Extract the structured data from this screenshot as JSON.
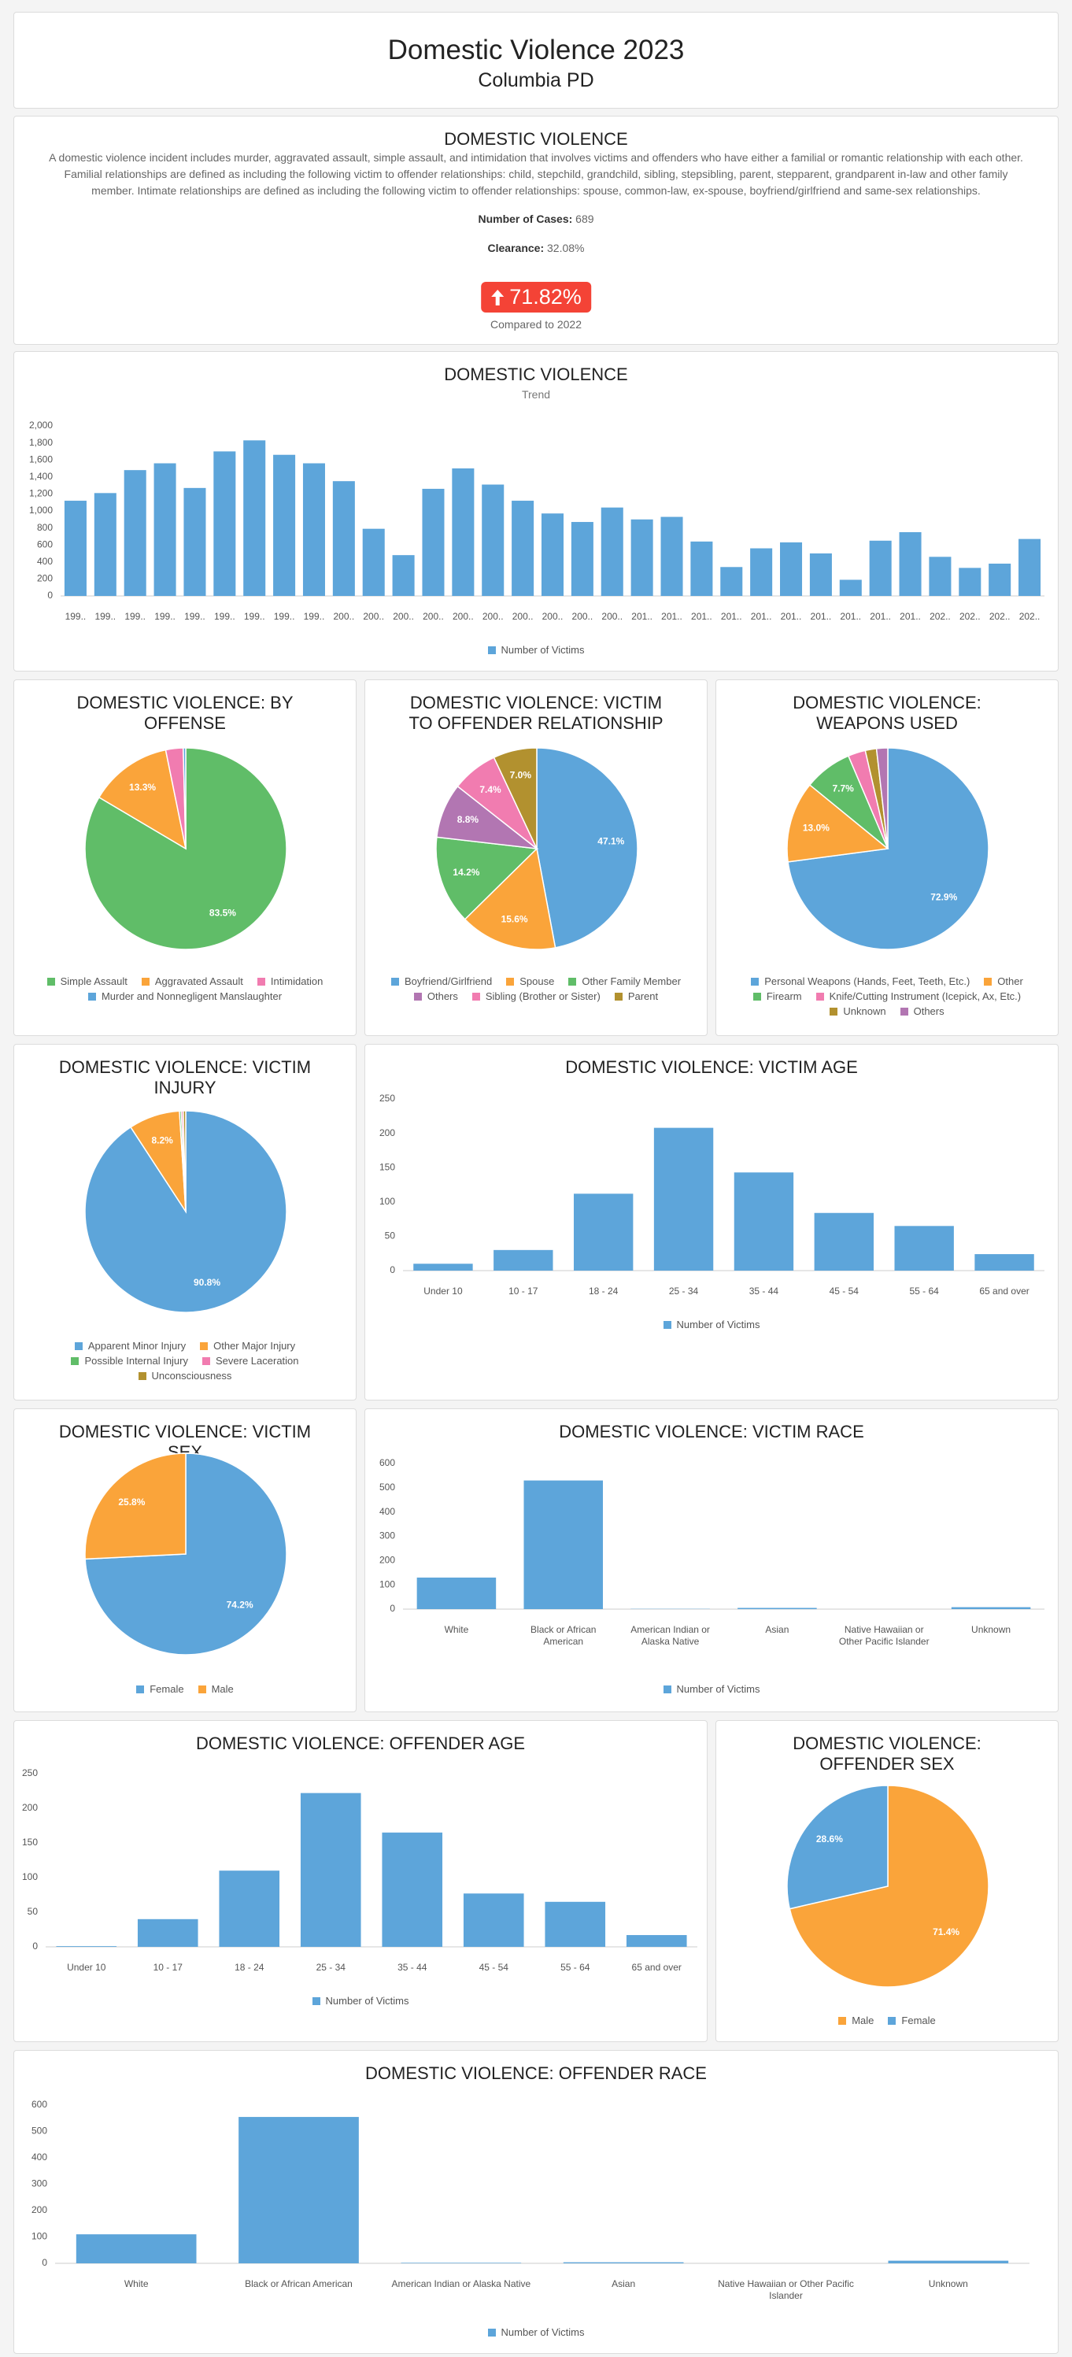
{
  "header": {
    "title": "Domestic Violence 2023",
    "subtitle": "Columbia PD"
  },
  "summary": {
    "title": "DOMESTIC VIOLENCE",
    "description": "A domestic violence incident includes murder, aggravated assault, simple assault, and intimidation that involves victims and offenders who have either a familial or romantic relationship with each other. Familial relationships are defined as including the following victim to offender relationships: child, stepchild, grandchild, sibling, stepsibling, parent, stepparent, grandparent in-law and other family member. Intimate relationships are defined as including the following victim to offender relationships: spouse, common-law, ex-spouse, boyfriend/girlfriend and same-sex relationships.",
    "cases_label": "Number of Cases:",
    "cases": "689",
    "clearance_label": "Clearance:",
    "clearance": "32.08%",
    "change": "71.82%",
    "change_note": "Compared to 2022"
  },
  "chart_data": [
    {
      "type": "bar",
      "title": "DOMESTIC VIOLENCE",
      "subtitle": "Trend",
      "categories": [
        "199..",
        "199..",
        "199..",
        "199..",
        "199..",
        "199..",
        "199..",
        "199..",
        "199..",
        "200..",
        "200..",
        "200..",
        "200..",
        "200..",
        "200..",
        "200..",
        "200..",
        "200..",
        "200..",
        "201..",
        "201..",
        "201..",
        "201..",
        "201..",
        "201..",
        "201..",
        "201..",
        "201..",
        "201..",
        "202..",
        "202..",
        "202..",
        "202.."
      ],
      "series": [
        {
          "name": "Number of Victims",
          "color": "#5da5da",
          "values": [
            1120,
            1210,
            1480,
            1560,
            1270,
            1700,
            1830,
            1660,
            1560,
            1350,
            790,
            480,
            1260,
            1500,
            1310,
            1120,
            970,
            870,
            1040,
            900,
            930,
            640,
            340,
            560,
            630,
            500,
            190,
            650,
            750,
            460,
            330,
            380,
            670
          ]
        }
      ],
      "ylim": [
        0,
        2000
      ],
      "yticks": [
        0,
        200,
        400,
        600,
        800,
        {
          "value": 1000,
          "label": "1,000"
        },
        {
          "value": 1200,
          "label": "1,200"
        },
        {
          "value": 1400,
          "label": "1,400"
        },
        {
          "value": 1600,
          "label": "1,600"
        },
        {
          "value": 1800,
          "label": "1,800"
        },
        {
          "value": 2000,
          "label": "2,000"
        }
      ],
      "grid": false
    },
    {
      "type": "pie",
      "title": "DOMESTIC VIOLENCE: BY OFFENSE",
      "categories": [
        "Simple Assault",
        "Aggravated Assault",
        "Intimidation",
        "Murder and Nonnegligent Manslaughter"
      ],
      "values": [
        83.5,
        13.3,
        2.8,
        0.4
      ],
      "value_labels": [
        "83.5%",
        "13.3%",
        null,
        null
      ],
      "colors": [
        "#60bd68",
        "#faa43a",
        "#f17cb0",
        "#5da5da"
      ]
    },
    {
      "type": "pie",
      "title": "DOMESTIC VIOLENCE: VICTIM TO OFFENDER RELATIONSHIP",
      "categories": [
        "Boyfriend/Girlfriend",
        "Spouse",
        "Other Family Member",
        "Others",
        "Sibling (Brother or Sister)",
        "Parent"
      ],
      "values": [
        47.1,
        15.6,
        14.2,
        8.8,
        7.4,
        7.0
      ],
      "value_labels": [
        "47.1%",
        "15.6%",
        "14.2%",
        "8.8%",
        "7.4%",
        "7.0%"
      ],
      "colors": [
        "#5da5da",
        "#faa43a",
        "#60bd68",
        "#b276b2",
        "#f17cb0",
        "#b2912f"
      ]
    },
    {
      "type": "pie",
      "title": "DOMESTIC VIOLENCE: WEAPONS USED",
      "categories": [
        "Personal Weapons (Hands, Feet, Teeth, Etc.)",
        "Other",
        "Firearm",
        "Knife/Cutting Instrument (Icepick, Ax, Etc.)",
        "Unknown",
        "Others"
      ],
      "values": [
        72.9,
        13.0,
        7.7,
        2.8,
        1.8,
        1.8
      ],
      "value_labels": [
        "72.9%",
        "13.0%",
        "7.7%",
        null,
        null,
        null
      ],
      "colors": [
        "#5da5da",
        "#faa43a",
        "#60bd68",
        "#f17cb0",
        "#b2912f",
        "#b276b2"
      ]
    },
    {
      "type": "pie",
      "title": "DOMESTIC VIOLENCE: VICTIM INJURY",
      "categories": [
        "Apparent Minor Injury",
        "Other Major Injury",
        "Possible Internal Injury",
        "Severe Laceration",
        "Unconsciousness"
      ],
      "values": [
        90.8,
        8.2,
        0.3,
        0.3,
        0.4
      ],
      "value_labels": [
        "90.8%",
        "8.2%",
        null,
        null,
        null
      ],
      "colors": [
        "#5da5da",
        "#faa43a",
        "#60bd68",
        "#f17cb0",
        "#b2912f"
      ]
    },
    {
      "type": "bar",
      "title": "DOMESTIC VIOLENCE: VICTIM AGE",
      "categories": [
        "Under 10",
        "10 - 17",
        "18 - 24",
        "25 - 34",
        "35 - 44",
        "45 - 54",
        "55 - 64",
        "65 and over"
      ],
      "series": [
        {
          "name": "Number of Victims",
          "color": "#5da5da",
          "values": [
            10,
            30,
            112,
            208,
            143,
            84,
            65,
            24
          ]
        }
      ],
      "ylim": [
        0,
        250
      ],
      "yticks": [
        0,
        50,
        100,
        150,
        200,
        250
      ],
      "grid": false
    },
    {
      "type": "pie",
      "title": "DOMESTIC VIOLENCE: VICTIM SEX",
      "categories": [
        "Female",
        "Male"
      ],
      "values": [
        74.2,
        25.8
      ],
      "value_labels": [
        "74.2%",
        "25.8%"
      ],
      "colors": [
        "#5da5da",
        "#faa43a"
      ]
    },
    {
      "type": "bar",
      "title": "DOMESTIC VIOLENCE: VICTIM RACE",
      "categories": [
        "White",
        "Black or African American",
        "American Indian or Alaska Native",
        "Asian",
        "Native Hawaiian or Other Pacific Islander",
        "Unknown"
      ],
      "series": [
        {
          "name": "Number of Victims",
          "color": "#5da5da",
          "values": [
            130,
            530,
            1,
            5,
            0,
            8
          ]
        }
      ],
      "ylim": [
        0,
        600
      ],
      "yticks": [
        0,
        100,
        200,
        300,
        400,
        500,
        600
      ],
      "grid": false
    },
    {
      "type": "bar",
      "title": "DOMESTIC VIOLENCE: OFFENDER AGE",
      "categories": [
        "Under 10",
        "10 - 17",
        "18 - 24",
        "25 - 34",
        "35 - 44",
        "45 - 54",
        "55 - 64",
        "65 and over"
      ],
      "series": [
        {
          "name": "Number of Victims",
          "color": "#5da5da",
          "values": [
            1,
            40,
            110,
            222,
            165,
            77,
            65,
            17
          ]
        }
      ],
      "ylim": [
        0,
        250
      ],
      "yticks": [
        0,
        50,
        100,
        150,
        200,
        250
      ],
      "grid": false
    },
    {
      "type": "pie",
      "title": "DOMESTIC VIOLENCE: OFFENDER SEX",
      "categories": [
        "Male",
        "Female"
      ],
      "values": [
        71.4,
        28.6
      ],
      "value_labels": [
        "71.4%",
        "28.6%"
      ],
      "colors": [
        "#faa43a",
        "#5da5da"
      ]
    },
    {
      "type": "bar",
      "title": "DOMESTIC VIOLENCE: OFFENDER RACE",
      "categories": [
        "White",
        "Black or African American",
        "American Indian or Alaska Native",
        "Asian",
        "Native Hawaiian or Other Pacific Islander",
        "Unknown"
      ],
      "series": [
        {
          "name": "Number of Victims",
          "color": "#5da5da",
          "values": [
            110,
            555,
            2,
            4,
            0,
            10
          ]
        }
      ],
      "ylim": [
        0,
        600
      ],
      "yticks": [
        0,
        100,
        200,
        300,
        400,
        500,
        600
      ],
      "grid": false
    }
  ]
}
